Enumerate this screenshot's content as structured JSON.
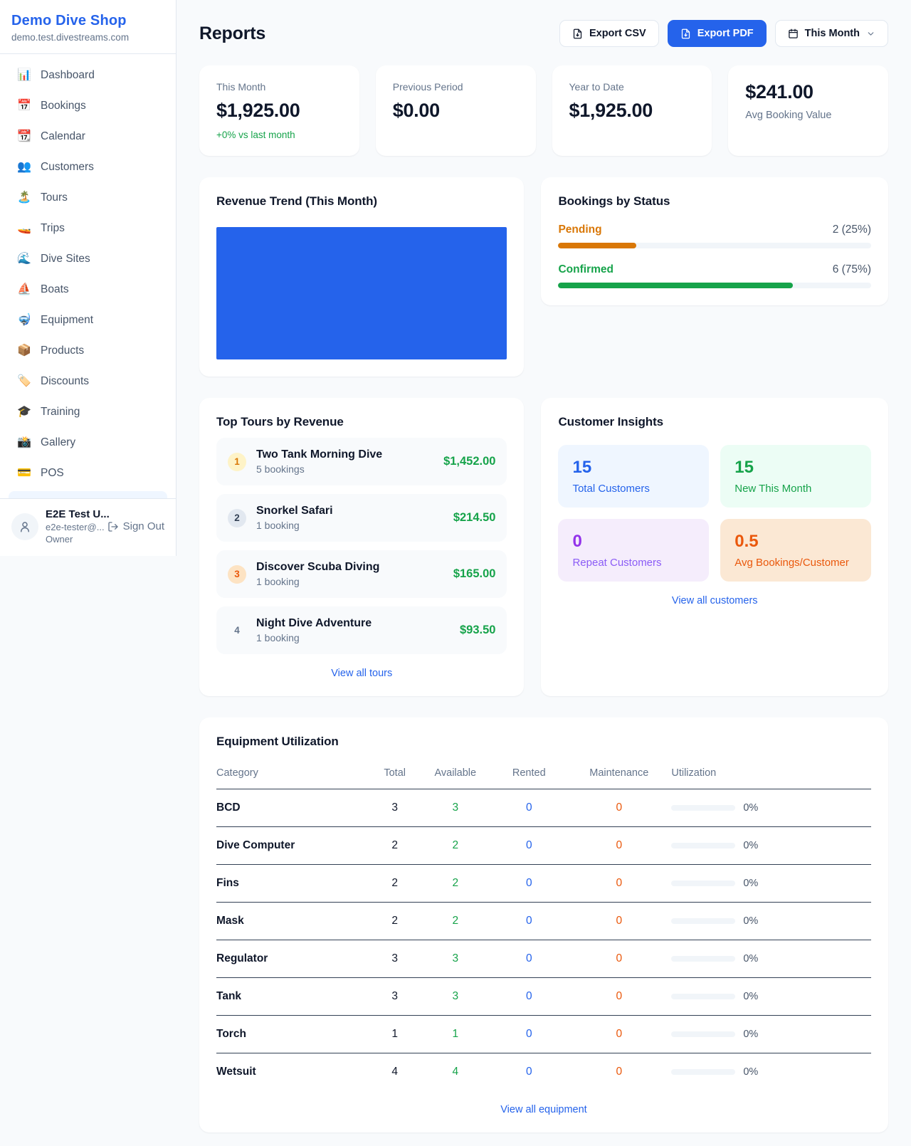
{
  "colors": {
    "accent": "#2563EB",
    "green": "#16A34A",
    "amber": "#D97706",
    "orange": "#EA580C",
    "purple": "#9333EA"
  },
  "sidebar": {
    "shop_name": "Demo Dive Shop",
    "shop_domain": "demo.test.divestreams.com",
    "items": [
      {
        "icon": "📊",
        "label": "Dashboard"
      },
      {
        "icon": "📅",
        "label": "Bookings"
      },
      {
        "icon": "📆",
        "label": "Calendar"
      },
      {
        "icon": "👥",
        "label": "Customers"
      },
      {
        "icon": "🏝️",
        "label": "Tours"
      },
      {
        "icon": "🚤",
        "label": "Trips"
      },
      {
        "icon": "🌊",
        "label": "Dive Sites"
      },
      {
        "icon": "⛵",
        "label": "Boats"
      },
      {
        "icon": "🤿",
        "label": "Equipment"
      },
      {
        "icon": "📦",
        "label": "Products"
      },
      {
        "icon": "🏷️",
        "label": "Discounts"
      },
      {
        "icon": "🎓",
        "label": "Training"
      },
      {
        "icon": "📸",
        "label": "Gallery"
      },
      {
        "icon": "💳",
        "label": "POS"
      }
    ],
    "user": {
      "name": "E2E Test U...",
      "email": "e2e-tester@...",
      "role": "Owner",
      "sign_out_label": "Sign Out"
    }
  },
  "header": {
    "title": "Reports",
    "export_csv_label": "Export CSV",
    "export_pdf_label": "Export PDF",
    "period_label": "This Month"
  },
  "stats": [
    {
      "label": "This Month",
      "value": "$1,925.00",
      "note": "+0% vs last month"
    },
    {
      "label": "Previous Period",
      "value": "$0.00"
    },
    {
      "label": "Year to Date",
      "value": "$1,925.00"
    },
    {
      "label": "Avg Booking Value",
      "value": "$241.00"
    }
  ],
  "revenue_trend": {
    "title": "Revenue Trend (This Month)",
    "bar_fill_pct": 100
  },
  "bookings_by_status": {
    "title": "Bookings by Status",
    "rows": [
      {
        "label": "Pending",
        "value": "2 (25%)",
        "pct": 25
      },
      {
        "label": "Confirmed",
        "value": "6 (75%)",
        "pct": 75
      }
    ]
  },
  "top_tours": {
    "title": "Top Tours by Revenue",
    "link": "View all tours",
    "items": [
      {
        "rank": "1",
        "name": "Two Tank Morning Dive",
        "sub": "5 bookings",
        "amount": "$1,452.00"
      },
      {
        "rank": "2",
        "name": "Snorkel Safari",
        "sub": "1 booking",
        "amount": "$214.50"
      },
      {
        "rank": "3",
        "name": "Discover Scuba Diving",
        "sub": "1 booking",
        "amount": "$165.00"
      },
      {
        "rank": "4",
        "name": "Night Dive Adventure",
        "sub": "1 booking",
        "amount": "$93.50"
      }
    ]
  },
  "customer_insights": {
    "title": "Customer Insights",
    "link": "View all customers",
    "cards": [
      {
        "value": "15",
        "label": "Total Customers"
      },
      {
        "value": "15",
        "label": "New This Month"
      },
      {
        "value": "0",
        "label": "Repeat Customers"
      },
      {
        "value": "0.5",
        "label": "Avg Bookings/Customer"
      }
    ]
  },
  "equipment": {
    "title": "Equipment Utilization",
    "link": "View all equipment",
    "columns": [
      "Category",
      "Total",
      "Available",
      "Rented",
      "Maintenance",
      "Utilization"
    ],
    "rows": [
      {
        "category": "BCD",
        "total": "3",
        "available": "3",
        "rented": "0",
        "maintenance": "0",
        "utilization_pct": 0,
        "utilization_label": "0%"
      },
      {
        "category": "Dive Computer",
        "total": "2",
        "available": "2",
        "rented": "0",
        "maintenance": "0",
        "utilization_pct": 0,
        "utilization_label": "0%"
      },
      {
        "category": "Fins",
        "total": "2",
        "available": "2",
        "rented": "0",
        "maintenance": "0",
        "utilization_pct": 0,
        "utilization_label": "0%"
      },
      {
        "category": "Mask",
        "total": "2",
        "available": "2",
        "rented": "0",
        "maintenance": "0",
        "utilization_pct": 0,
        "utilization_label": "0%"
      },
      {
        "category": "Regulator",
        "total": "3",
        "available": "3",
        "rented": "0",
        "maintenance": "0",
        "utilization_pct": 0,
        "utilization_label": "0%"
      },
      {
        "category": "Tank",
        "total": "3",
        "available": "3",
        "rented": "0",
        "maintenance": "0",
        "utilization_pct": 0,
        "utilization_label": "0%"
      },
      {
        "category": "Torch",
        "total": "1",
        "available": "1",
        "rented": "0",
        "maintenance": "0",
        "utilization_pct": 0,
        "utilization_label": "0%"
      },
      {
        "category": "Wetsuit",
        "total": "4",
        "available": "4",
        "rented": "0",
        "maintenance": "0",
        "utilization_pct": 0,
        "utilization_label": "0%"
      }
    ]
  }
}
